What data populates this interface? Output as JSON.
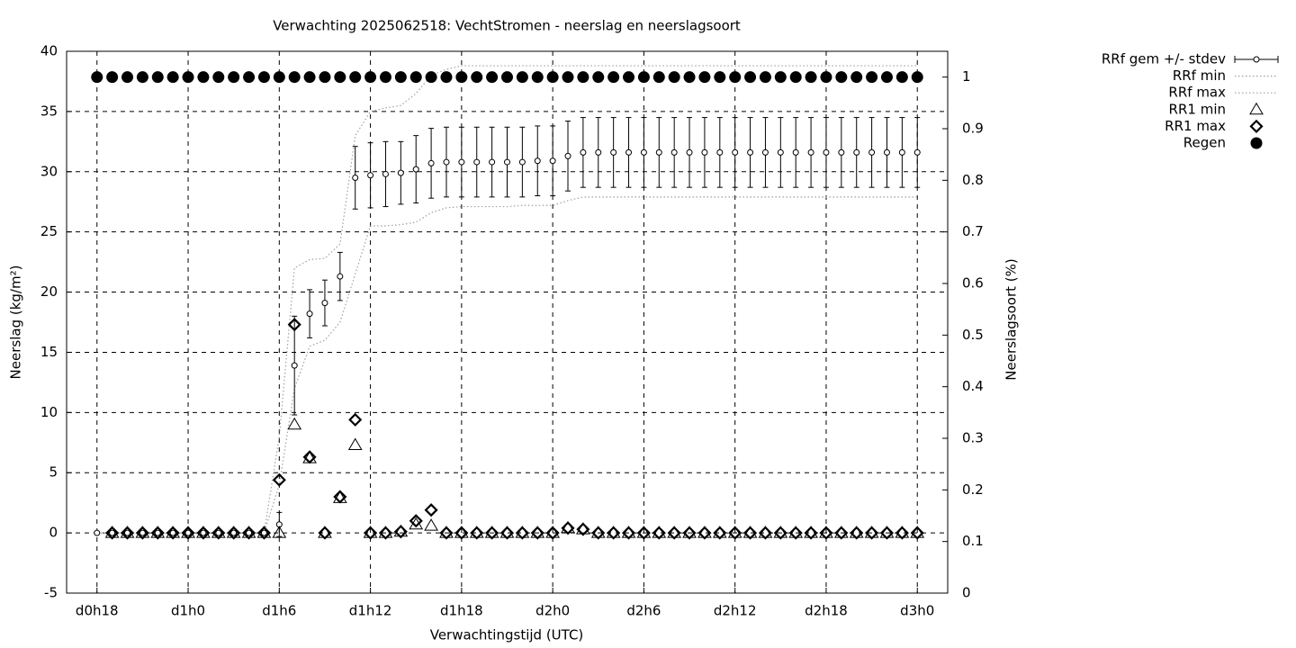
{
  "chart_data": {
    "type": "errorbar",
    "title": "Verwachting 2025062518: VechtStromen - neerslag en neerslagsoort",
    "xlabel": "Verwachtingstijd (UTC)",
    "ylabel": "Neerslag (kg/m²)",
    "y2label": "Neerslagsoort (%)",
    "x": [
      18,
      19,
      20,
      21,
      22,
      23,
      24,
      25,
      26,
      27,
      28,
      29,
      30,
      31,
      32,
      33,
      34,
      35,
      36,
      37,
      38,
      39,
      40,
      41,
      42,
      43,
      44,
      45,
      46,
      47,
      48,
      49,
      50,
      51,
      52,
      53,
      54,
      55,
      56,
      57,
      58,
      59,
      60,
      61,
      62,
      63,
      64,
      65,
      66,
      67,
      68,
      69,
      70,
      71,
      72
    ],
    "xlim": [
      16,
      74
    ],
    "xticks": [
      {
        "value": 18,
        "label": "d0h18"
      },
      {
        "value": 24,
        "label": "d1h0"
      },
      {
        "value": 30,
        "label": "d1h6"
      },
      {
        "value": 36,
        "label": "d1h12"
      },
      {
        "value": 42,
        "label": "d1h18"
      },
      {
        "value": 48,
        "label": "d2h0"
      },
      {
        "value": 54,
        "label": "d2h6"
      },
      {
        "value": 60,
        "label": "d2h12"
      },
      {
        "value": 66,
        "label": "d2h18"
      },
      {
        "value": 72,
        "label": "d3h0"
      }
    ],
    "ylim": [
      -5,
      40
    ],
    "yticks": [
      -5,
      0,
      5,
      10,
      15,
      20,
      25,
      30,
      35,
      40
    ],
    "y2lim": [
      0,
      1.05
    ],
    "y2ticks": [
      0,
      0.1,
      0.2,
      0.3,
      0.4,
      0.5,
      0.6,
      0.7,
      0.8,
      0.9,
      1
    ],
    "grid": true,
    "legend": "top right",
    "series": [
      {
        "name": "RRf gem +/- stdev",
        "marker": "errorbar",
        "color": "#000000",
        "values": [
          0,
          0,
          0,
          0,
          0,
          0,
          0,
          0,
          0,
          0,
          0,
          0,
          0.7,
          13.9,
          18.2,
          19.1,
          21.3,
          29.5,
          29.7,
          29.8,
          29.9,
          30.2,
          30.7,
          30.8,
          30.8,
          30.8,
          30.8,
          30.8,
          30.8,
          30.9,
          30.9,
          31.3,
          31.6,
          31.6,
          31.6,
          31.6,
          31.6,
          31.6,
          31.6,
          31.6,
          31.6,
          31.6,
          31.6,
          31.6,
          31.6,
          31.6,
          31.6,
          31.6,
          31.6,
          31.6,
          31.6,
          31.6,
          31.6,
          31.6,
          31.6
        ],
        "errors": [
          0,
          0,
          0,
          0,
          0,
          0,
          0,
          0,
          0,
          0,
          0,
          0,
          1.0,
          4.1,
          2.0,
          1.9,
          2.0,
          2.6,
          2.7,
          2.7,
          2.6,
          2.8,
          2.9,
          2.9,
          2.9,
          2.9,
          2.9,
          2.9,
          2.9,
          2.9,
          2.9,
          2.9,
          2.9,
          2.9,
          2.9,
          2.9,
          2.9,
          2.9,
          2.9,
          2.9,
          2.9,
          2.9,
          2.9,
          2.9,
          2.9,
          2.9,
          2.9,
          2.9,
          2.9,
          2.9,
          2.9,
          2.9,
          2.9,
          2.9,
          2.9
        ]
      },
      {
        "name": "RRf min",
        "marker": "dotted-line",
        "color": "#a0a0a0",
        "values": [
          0,
          0,
          0,
          0,
          0,
          0,
          0,
          0,
          0,
          0,
          0,
          0,
          4,
          12,
          15.5,
          16,
          17.5,
          21.5,
          25.5,
          25.5,
          25.6,
          25.8,
          26.6,
          27,
          27.1,
          27.1,
          27.1,
          27.1,
          27.2,
          27.2,
          27.2,
          27.6,
          27.9,
          27.9,
          27.9,
          27.9,
          27.9,
          27.9,
          27.9,
          27.9,
          27.9,
          27.9,
          27.9,
          27.9,
          27.9,
          27.9,
          27.9,
          27.9,
          27.9,
          27.9,
          27.9,
          27.9,
          27.9,
          27.9,
          27.9
        ]
      },
      {
        "name": "RRf max",
        "marker": "dotted-line",
        "color": "#a0a0a0",
        "values": [
          0,
          0,
          0,
          0,
          0,
          0,
          0,
          0,
          0,
          0,
          0,
          0,
          8,
          22,
          22.7,
          22.8,
          24,
          33,
          35,
          35.3,
          35.5,
          36.5,
          38,
          38.5,
          38.8,
          38.8,
          38.8,
          38.8,
          38.8,
          38.8,
          38.8,
          38.8,
          38.8,
          38.8,
          38.8,
          38.8,
          38.8,
          38.8,
          38.8,
          38.8,
          38.8,
          38.8,
          38.8,
          38.8,
          38.8,
          38.8,
          38.8,
          38.8,
          38.8,
          38.8,
          38.8,
          38.8,
          38.8,
          38.8,
          38.8
        ]
      },
      {
        "name": "RR1 min",
        "marker": "triangle",
        "color": "#000000",
        "values": [
          null,
          0,
          0,
          0,
          0,
          0,
          0,
          0,
          0,
          0,
          0,
          0,
          0,
          9,
          6.2,
          0,
          2.9,
          7.3,
          0,
          0,
          0.1,
          0.7,
          0.6,
          0,
          0,
          0,
          0,
          0,
          0,
          0,
          0,
          0.4,
          0.3,
          0,
          0,
          0,
          0,
          0,
          0,
          0,
          0,
          0,
          0,
          0,
          0,
          0,
          0,
          0,
          0,
          0,
          0,
          0,
          0,
          0,
          0
        ]
      },
      {
        "name": "RR1 max",
        "marker": "diamond",
        "color": "#000000",
        "values": [
          null,
          0,
          0,
          0,
          0,
          0,
          0,
          0,
          0,
          0,
          0,
          0,
          4.4,
          17.3,
          6.3,
          0,
          3,
          9.4,
          0,
          0,
          0.1,
          1,
          1.9,
          0,
          0,
          0,
          0,
          0,
          0,
          0,
          0,
          0.4,
          0.3,
          0,
          0,
          0,
          0,
          0,
          0,
          0,
          0,
          0,
          0,
          0,
          0,
          0,
          0,
          0,
          0,
          0,
          0,
          0,
          0,
          0,
          0
        ]
      },
      {
        "name": "Regen",
        "marker": "filled-circle",
        "color": "#000000",
        "axis": "y2",
        "values": [
          1,
          1,
          1,
          1,
          1,
          1,
          1,
          1,
          1,
          1,
          1,
          1,
          1,
          1,
          1,
          1,
          1,
          1,
          1,
          1,
          1,
          1,
          1,
          1,
          1,
          1,
          1,
          1,
          1,
          1,
          1,
          1,
          1,
          1,
          1,
          1,
          1,
          1,
          1,
          1,
          1,
          1,
          1,
          1,
          1,
          1,
          1,
          1,
          1,
          1,
          1,
          1,
          1,
          1,
          1
        ]
      }
    ]
  }
}
